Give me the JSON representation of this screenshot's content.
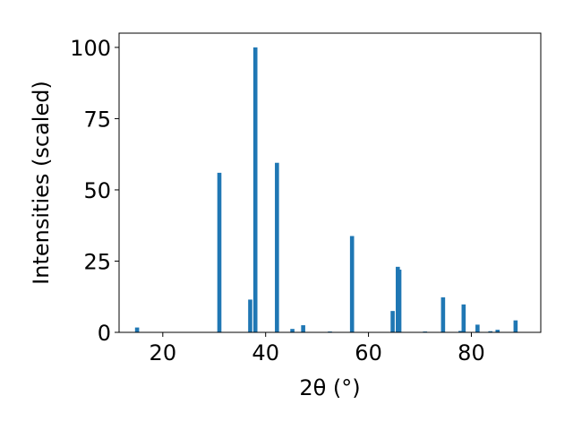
{
  "chart_data": {
    "type": "bar",
    "title": "",
    "xlabel": "2θ (°)",
    "ylabel": "Intensities (scaled)",
    "xlim": [
      11.5,
      93.5
    ],
    "ylim": [
      0,
      105
    ],
    "xticks": [
      20,
      40,
      60,
      80
    ],
    "yticks": [
      0,
      25,
      50,
      75,
      100
    ],
    "grid": false,
    "bar_color": "#1f77b4",
    "bar_width": 0.8,
    "series": [
      {
        "x": [
          15.0,
          31.0,
          37.0,
          38.0,
          42.2,
          45.2,
          47.3,
          52.5,
          56.8,
          64.7,
          65.7,
          66.0,
          71.0,
          74.5,
          77.9,
          78.5,
          81.2,
          83.7,
          85.1,
          88.6
        ],
        "values": [
          1.7,
          56.0,
          11.5,
          100.0,
          59.5,
          1.2,
          2.5,
          0.3,
          33.8,
          7.5,
          23.0,
          22.0,
          0.3,
          12.3,
          0.5,
          9.8,
          2.7,
          0.4,
          0.9,
          4.2
        ]
      }
    ]
  }
}
